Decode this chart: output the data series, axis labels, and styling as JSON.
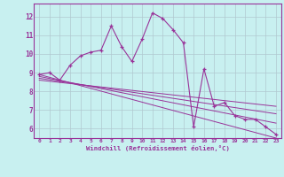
{
  "xlabel": "Windchill (Refroidissement éolien,°C)",
  "bg_color": "#c8f0f0",
  "grid_color": "#aaaacc",
  "line_color": "#993399",
  "xlim": [
    -0.5,
    23.5
  ],
  "ylim": [
    5.5,
    12.7
  ],
  "xticks": [
    0,
    1,
    2,
    3,
    4,
    5,
    6,
    7,
    8,
    9,
    10,
    11,
    12,
    13,
    14,
    15,
    16,
    17,
    18,
    19,
    20,
    21,
    22,
    23
  ],
  "yticks": [
    6,
    7,
    8,
    9,
    10,
    11,
    12
  ],
  "series1_x": [
    0,
    1,
    2,
    3,
    4,
    5,
    6,
    7,
    8,
    9,
    10,
    11,
    12,
    13,
    14,
    15,
    16,
    17,
    18,
    19,
    20,
    21,
    22,
    23
  ],
  "series1_y": [
    8.9,
    9.0,
    8.6,
    9.4,
    9.9,
    10.1,
    10.2,
    11.5,
    10.4,
    9.6,
    10.8,
    12.2,
    11.9,
    11.3,
    10.6,
    6.1,
    9.2,
    7.2,
    7.4,
    6.7,
    6.5,
    6.5,
    6.1,
    5.7
  ],
  "trend1_x": [
    0,
    23
  ],
  "trend1_y": [
    8.9,
    5.5
  ],
  "trend2_x": [
    0,
    23
  ],
  "trend2_y": [
    8.8,
    6.3
  ],
  "trend3_x": [
    0,
    23
  ],
  "trend3_y": [
    8.7,
    6.8
  ],
  "trend4_x": [
    0,
    23
  ],
  "trend4_y": [
    8.6,
    7.2
  ]
}
